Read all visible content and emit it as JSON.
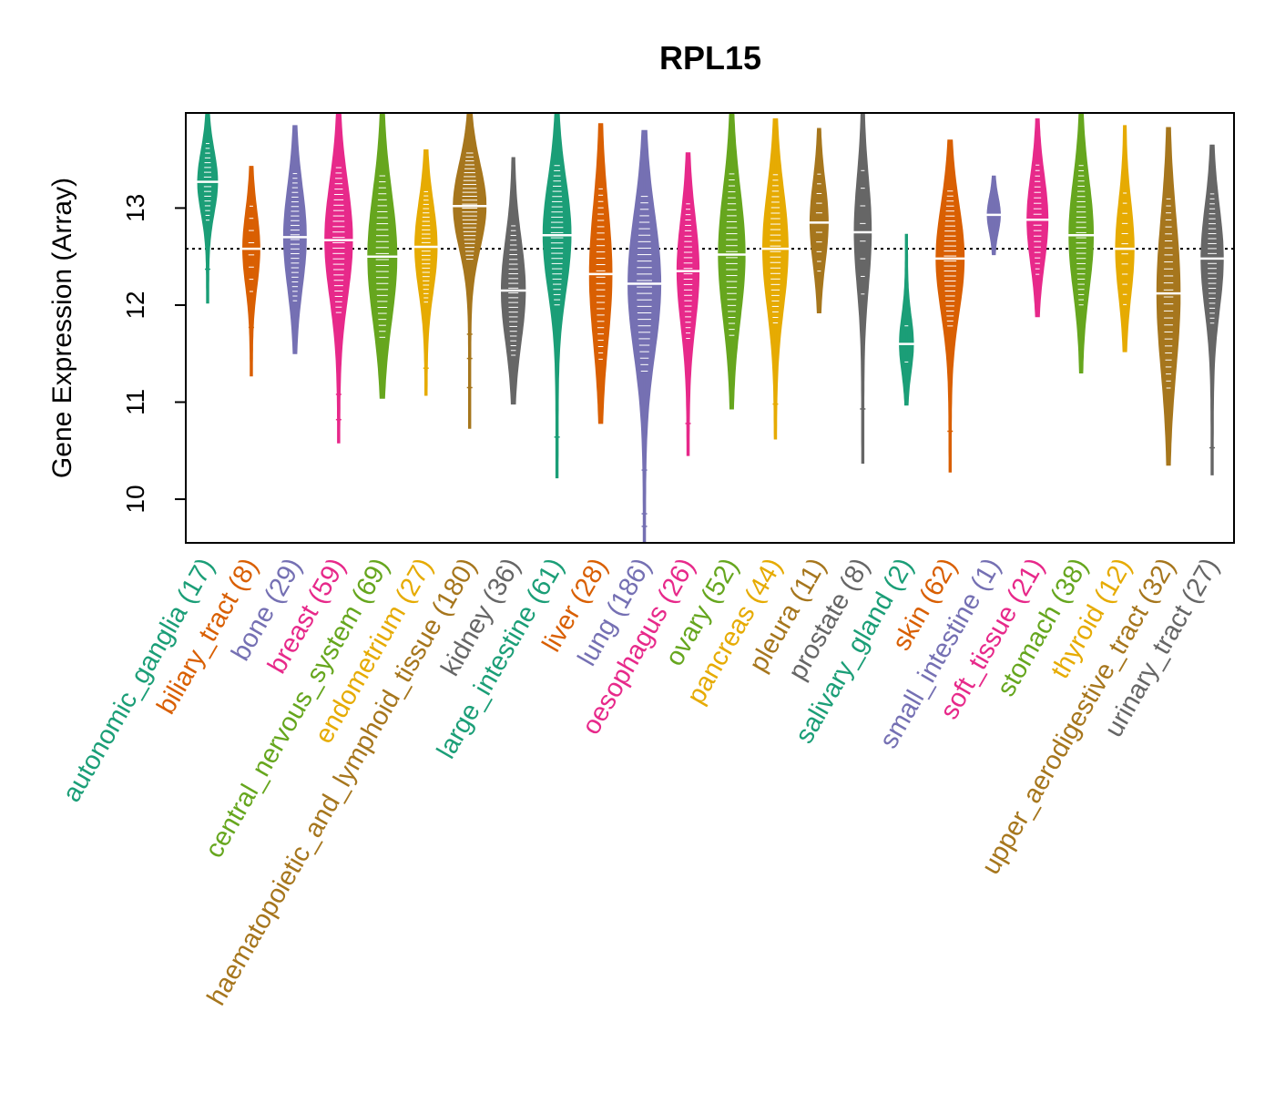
{
  "chart_data": {
    "type": "violin",
    "title": "RPL15",
    "xlabel": "",
    "ylabel": "Gene Expression (Array)",
    "ylim": [
      9.55,
      13.98
    ],
    "yticks": [
      10,
      11,
      12,
      13
    ],
    "reference_line": 12.58,
    "categories": [
      {
        "name": "autonomic_ganglia",
        "n": 17,
        "label": "autonomic_ganglia (17)",
        "color": "#1B9E77",
        "median": 13.27,
        "min": 12.02,
        "max": 13.98,
        "outliers": [
          12.37
        ]
      },
      {
        "name": "biliary_tract",
        "n": 8,
        "label": "biliary_tract (8)",
        "color": "#D95F02",
        "median": 12.58,
        "min": 11.27,
        "max": 13.43,
        "outliers": [
          11.77
        ]
      },
      {
        "name": "bone",
        "n": 29,
        "label": "bone (29)",
        "color": "#7570B3",
        "median": 12.7,
        "min": 11.5,
        "max": 13.85,
        "outliers": []
      },
      {
        "name": "breast",
        "n": 59,
        "label": "breast (59)",
        "color": "#E7298A",
        "median": 12.67,
        "min": 10.58,
        "max": 13.98,
        "outliers": [
          10.82,
          11.08
        ]
      },
      {
        "name": "central_nervous_system",
        "n": 69,
        "label": "central_nervous_system (69)",
        "color": "#66A61E",
        "median": 12.5,
        "min": 11.04,
        "max": 13.98,
        "outliers": [
          11.45
        ]
      },
      {
        "name": "endometrium",
        "n": 27,
        "label": "endometrium (27)",
        "color": "#E6AB02",
        "median": 12.6,
        "min": 11.07,
        "max": 13.6,
        "outliers": [
          11.35
        ]
      },
      {
        "name": "haematopoietic_and_lymphoid_tissue",
        "n": 180,
        "label": "haematopoietic_and_lymphoid_tissue (180)",
        "color": "#A6761D",
        "median": 13.02,
        "min": 10.73,
        "max": 13.98,
        "outliers": [
          11.15,
          11.45,
          11.7
        ]
      },
      {
        "name": "kidney",
        "n": 36,
        "label": "kidney (36)",
        "color": "#666666",
        "median": 12.15,
        "min": 10.98,
        "max": 13.52,
        "outliers": []
      },
      {
        "name": "large_intestine",
        "n": 61,
        "label": "large_intestine (61)",
        "color": "#1B9E77",
        "median": 12.72,
        "min": 10.22,
        "max": 13.98,
        "outliers": [
          10.64,
          11.55
        ]
      },
      {
        "name": "liver",
        "n": 28,
        "label": "liver (28)",
        "color": "#D95F02",
        "median": 12.32,
        "min": 10.78,
        "max": 13.87,
        "outliers": [
          11.15,
          13.6
        ]
      },
      {
        "name": "lung",
        "n": 186,
        "label": "lung (186)",
        "color": "#7570B3",
        "median": 12.22,
        "min": 9.55,
        "max": 13.8,
        "outliers": [
          9.72,
          9.85,
          10.3,
          10.8
        ]
      },
      {
        "name": "oesophagus",
        "n": 26,
        "label": "oesophagus (26)",
        "color": "#E7298A",
        "median": 12.35,
        "min": 10.45,
        "max": 13.57,
        "outliers": [
          10.78
        ]
      },
      {
        "name": "ovary",
        "n": 52,
        "label": "ovary (52)",
        "color": "#66A61E",
        "median": 12.52,
        "min": 10.93,
        "max": 13.98,
        "outliers": [
          11.25,
          13.77
        ]
      },
      {
        "name": "pancreas",
        "n": 44,
        "label": "pancreas (44)",
        "color": "#E6AB02",
        "median": 12.58,
        "min": 10.62,
        "max": 13.92,
        "outliers": [
          10.98,
          11.4
        ]
      },
      {
        "name": "pleura",
        "n": 11,
        "label": "pleura (11)",
        "color": "#A6761D",
        "median": 12.85,
        "min": 11.92,
        "max": 13.82,
        "outliers": []
      },
      {
        "name": "prostate",
        "n": 8,
        "label": "prostate (8)",
        "color": "#666666",
        "median": 12.75,
        "min": 10.37,
        "max": 13.98,
        "outliers": [
          10.93
        ]
      },
      {
        "name": "salivary_gland",
        "n": 2,
        "label": "salivary_gland (2)",
        "color": "#1B9E77",
        "median": 11.6,
        "min": 10.97,
        "max": 12.73,
        "outliers": []
      },
      {
        "name": "skin",
        "n": 62,
        "label": "skin (62)",
        "color": "#D95F02",
        "median": 12.48,
        "min": 10.28,
        "max": 13.7,
        "outliers": [
          10.7,
          11.5
        ]
      },
      {
        "name": "small_intestine",
        "n": 1,
        "label": "small_intestine (1)",
        "color": "#7570B3",
        "median": 12.93,
        "min": 12.52,
        "max": 13.33,
        "outliers": []
      },
      {
        "name": "soft_tissue",
        "n": 21,
        "label": "soft_tissue (21)",
        "color": "#E7298A",
        "median": 12.88,
        "min": 11.88,
        "max": 13.92,
        "outliers": []
      },
      {
        "name": "stomach",
        "n": 38,
        "label": "stomach (38)",
        "color": "#66A61E",
        "median": 12.72,
        "min": 11.3,
        "max": 13.98,
        "outliers": []
      },
      {
        "name": "thyroid",
        "n": 12,
        "label": "thyroid (12)",
        "color": "#E6AB02",
        "median": 12.58,
        "min": 11.52,
        "max": 13.85,
        "outliers": []
      },
      {
        "name": "upper_aerodigestive_tract",
        "n": 32,
        "label": "upper_aerodigestive_tract (32)",
        "color": "#A6761D",
        "median": 12.12,
        "min": 10.35,
        "max": 13.83,
        "outliers": [
          10.72,
          13.47
        ]
      },
      {
        "name": "urinary_tract",
        "n": 27,
        "label": "urinary_tract (27)",
        "color": "#666666",
        "median": 12.48,
        "min": 10.25,
        "max": 13.65,
        "outliers": [
          10.53
        ]
      }
    ]
  }
}
